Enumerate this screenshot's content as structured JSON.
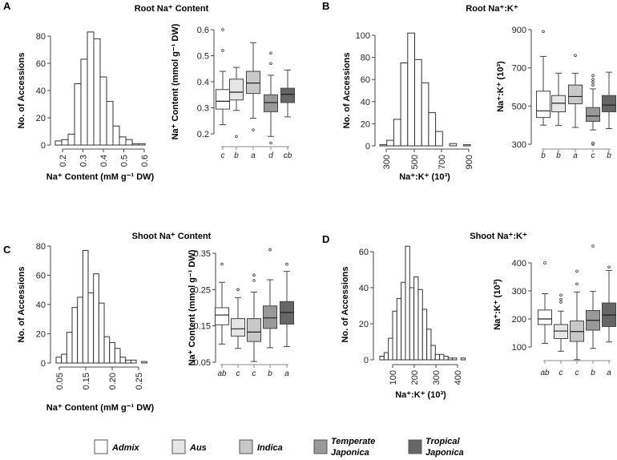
{
  "groups": [
    {
      "name": "Admix",
      "color": "#ffffff"
    },
    {
      "name": "Aus",
      "color": "#e6e6e6"
    },
    {
      "name": "Indica",
      "color": "#c8c8c8"
    },
    {
      "name": "Temperate Japonica",
      "line1": "Temperate",
      "line2": "Japonica",
      "color": "#999999"
    },
    {
      "name": "Tropical Japonica",
      "line1": "Tropical",
      "line2": "Japonica",
      "color": "#666666"
    }
  ],
  "chart_data": [
    {
      "panel": "A",
      "title": "Root Na⁺ Content",
      "type": "bar",
      "histogram": {
        "xlabel": "Na⁺ Content (mM g⁻¹ DW)",
        "ylabel": "No. of Accessions",
        "x_tick_labels": [
          "0.2",
          "0.3",
          "0.4",
          "0.5",
          "0.6"
        ],
        "y_ticks": [
          0,
          20,
          40,
          60,
          80
        ],
        "counts": [
          3,
          4,
          8,
          45,
          63,
          83,
          78,
          50,
          32,
          14,
          6,
          4,
          1,
          1
        ]
      },
      "boxplot": {
        "type": "box",
        "ylabel": "Na⁺ Content (mmol g⁻¹ DW)",
        "y_ticks": [
          0.2,
          0.3,
          0.4,
          0.5,
          0.6
        ],
        "y_tick_labels": [
          "0.2",
          "0.3",
          "0.4",
          "0.5",
          "0.6"
        ],
        "letters": [
          "c",
          "b",
          "a",
          "d",
          "cb"
        ],
        "boxes": [
          {
            "low": 0.235,
            "q1": 0.295,
            "median": 0.325,
            "q3": 0.37,
            "high": 0.44,
            "outliers": [
              0.52,
              0.6
            ]
          },
          {
            "low": 0.29,
            "q1": 0.33,
            "median": 0.36,
            "q3": 0.41,
            "high": 0.455,
            "outliers": [
              0.19
            ]
          },
          {
            "low": 0.26,
            "q1": 0.355,
            "median": 0.395,
            "q3": 0.44,
            "high": 0.55,
            "outliers": [
              0.215
            ]
          },
          {
            "low": 0.19,
            "q1": 0.285,
            "median": 0.32,
            "q3": 0.35,
            "high": 0.425,
            "outliers": [
              0.47,
              0.51,
              0.165
            ]
          },
          {
            "low": 0.265,
            "q1": 0.32,
            "median": 0.352,
            "q3": 0.375,
            "high": 0.445,
            "outliers": []
          }
        ]
      }
    },
    {
      "panel": "B",
      "title": "Root Na⁺:K⁺",
      "type": "bar",
      "histogram": {
        "xlabel": "Na⁺:K⁺ (10³)",
        "ylabel": "No. of Accessions",
        "x_tick_labels": [
          "300",
          "500",
          "700",
          "900"
        ],
        "y_ticks": [
          0,
          20,
          40,
          60,
          80,
          100
        ],
        "counts": [
          1,
          5,
          24,
          75,
          102,
          78,
          57,
          30,
          13,
          0,
          2,
          0,
          1
        ]
      },
      "boxplot": {
        "type": "box",
        "ylabel": "Na⁺:K⁺ (10³)",
        "y_ticks": [
          300,
          500,
          700,
          900
        ],
        "y_tick_labels": [
          "300",
          "500",
          "700",
          "900"
        ],
        "letters": [
          "b",
          "b",
          "a",
          "c",
          "b"
        ],
        "boxes": [
          {
            "low": 400,
            "q1": 440,
            "median": 475,
            "q3": 578,
            "high": 760,
            "outliers": [
              890
            ]
          },
          {
            "low": 398,
            "q1": 470,
            "median": 515,
            "q3": 555,
            "high": 672,
            "outliers": []
          },
          {
            "low": 388,
            "q1": 512,
            "median": 550,
            "q3": 610,
            "high": 672,
            "outliers": [
              765
            ]
          },
          {
            "low": 375,
            "q1": 420,
            "median": 448,
            "q3": 492,
            "high": 590,
            "outliers": [
              610,
              625,
              640,
              660,
              300,
              306
            ]
          },
          {
            "low": 382,
            "q1": 470,
            "median": 505,
            "q3": 555,
            "high": 677,
            "outliers": []
          }
        ]
      }
    },
    {
      "panel": "C",
      "title": "Shoot Na⁺ Content",
      "type": "bar",
      "histogram": {
        "xlabel": "Na⁺ Content (mM g⁻¹ DW)",
        "ylabel": "No. of Accessions",
        "x_tick_labels": [
          "0.05",
          "0.15",
          "0.20",
          "0.25"
        ],
        "y_ticks": [
          0,
          20,
          40,
          60,
          80
        ],
        "counts": [
          4,
          6,
          21,
          38,
          45,
          77,
          48,
          61,
          41,
          18,
          14,
          10,
          4,
          2,
          2,
          0,
          1
        ]
      },
      "boxplot": {
        "type": "box",
        "ylabel": "Na⁺ Content (mmol g⁻¹ DW)",
        "y_ticks": [
          0.05,
          0.15,
          0.25,
          0.35
        ],
        "y_tick_labels": [
          "0.05",
          "0.15",
          "0.25",
          "0.35"
        ],
        "letters": [
          "ab",
          "c",
          "c",
          "b",
          "a"
        ],
        "boxes": [
          {
            "low": 0.1,
            "q1": 0.153,
            "median": 0.18,
            "q3": 0.2,
            "high": 0.27,
            "outliers": [
              0.32
            ]
          },
          {
            "low": 0.088,
            "q1": 0.122,
            "median": 0.142,
            "q3": 0.17,
            "high": 0.228,
            "outliers": [
              0.25
            ]
          },
          {
            "low": 0.052,
            "q1": 0.107,
            "median": 0.133,
            "q3": 0.17,
            "high": 0.243,
            "outliers": [
              0.275,
              0.29
            ]
          },
          {
            "low": 0.09,
            "q1": 0.143,
            "median": 0.172,
            "q3": 0.205,
            "high": 0.277,
            "outliers": [
              0.36
            ]
          },
          {
            "low": 0.093,
            "q1": 0.155,
            "median": 0.187,
            "q3": 0.217,
            "high": 0.3,
            "outliers": [
              0.32
            ]
          }
        ]
      }
    },
    {
      "panel": "D",
      "title": "Shoot Na⁺:K⁺",
      "type": "bar",
      "histogram": {
        "xlabel": "Na⁺:K⁺ (10³)",
        "ylabel": "No. of Accessions",
        "x_tick_labels": [
          "100",
          "200",
          "300",
          "400"
        ],
        "y_ticks": [
          0,
          20,
          40,
          60
        ],
        "counts": [
          2,
          4,
          12,
          27,
          34,
          43,
          63,
          40,
          46,
          39,
          28,
          17,
          8,
          3,
          3,
          2,
          1,
          1,
          0,
          1
        ]
      },
      "boxplot": {
        "type": "box",
        "ylabel": "Na⁺:K⁺ (10³)",
        "y_ticks": [
          100,
          200,
          300,
          400
        ],
        "y_tick_labels": [
          "100",
          "200",
          "300",
          "400"
        ],
        "letters": [
          "ab",
          "c",
          "c",
          "b",
          "a"
        ],
        "boxes": [
          {
            "low": 113,
            "q1": 180,
            "median": 200,
            "q3": 232,
            "high": 290,
            "outliers": [
              400
            ]
          },
          {
            "low": 85,
            "q1": 130,
            "median": 157,
            "q3": 180,
            "high": 228,
            "outliers": [
              260,
              270,
              285
            ]
          },
          {
            "low": 55,
            "q1": 120,
            "median": 155,
            "q3": 193,
            "high": 296,
            "outliers": [
              325,
              370
            ]
          },
          {
            "low": 95,
            "q1": 160,
            "median": 195,
            "q3": 230,
            "high": 298,
            "outliers": [
              460
            ]
          },
          {
            "low": 118,
            "q1": 173,
            "median": 214,
            "q3": 257,
            "high": 373,
            "outliers": [
              385
            ]
          }
        ]
      }
    }
  ]
}
